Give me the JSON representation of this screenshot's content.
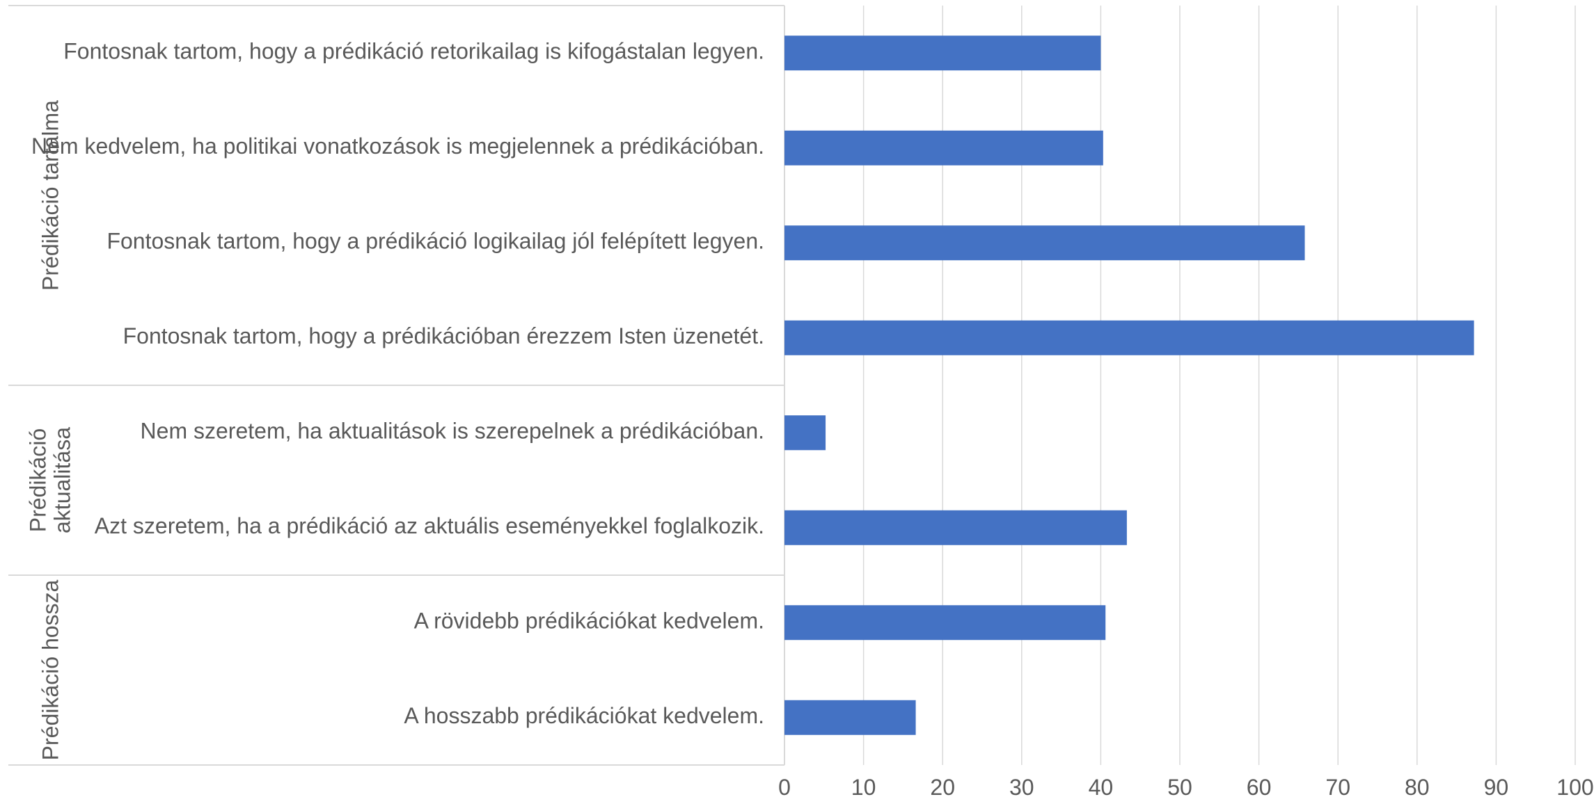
{
  "chart_data": {
    "type": "bar",
    "orientation": "horizontal",
    "grid": true,
    "legend": "none",
    "xlim": [
      0,
      100
    ],
    "xticks": [
      0,
      10,
      20,
      30,
      40,
      50,
      60,
      70,
      80,
      90,
      100
    ],
    "groups": [
      {
        "label": "Prédikáció tartalma",
        "categories": [
          "Fontosnak tartom, hogy a prédikáció retorikailag is kifogástalan legyen.",
          "Nem kedvelem, ha politikai vonatkozások is megjelennek a prédikációban.",
          "Fontosnak tartom, hogy a prédikáció logikailag jól felépített legyen.",
          "Fontosnak tartom, hogy a prédikációban érezzem Isten üzenetét."
        ],
        "values": [
          40,
          40.3,
          65.8,
          87.2
        ]
      },
      {
        "label": "Prédikáció aktualitása",
        "label_lines": [
          "Prédikáció",
          "aktualitása"
        ],
        "categories": [
          "Nem szeretem, ha aktualitások is szerepelnek a prédikációban.",
          "Azt szeretem, ha a prédikáció az aktuális eseményekkel foglalkozik."
        ],
        "values": [
          5.2,
          43.3
        ]
      },
      {
        "label": "Prédikáció hossza",
        "categories": [
          "A rövidebb prédikációkat kedvelem.",
          "A hosszabb prédikációkat kedvelem."
        ],
        "values": [
          40.6,
          16.6
        ]
      }
    ],
    "colors": {
      "bar": "#4472C4",
      "grid": "#D9D9D9",
      "axis": "#D9D9D9",
      "text": "#595959"
    }
  }
}
